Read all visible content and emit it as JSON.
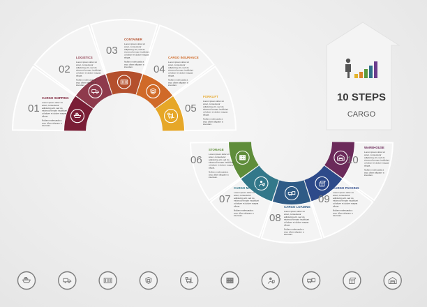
{
  "hero": {
    "title": "10 STEPS",
    "subtitle": "CARGO",
    "chart_icon_colors": [
      "#e4b32a",
      "#d9852a",
      "#5a9a3e",
      "#2f6f8a",
      "#6a3c8c"
    ]
  },
  "steps": [
    {
      "number": "01",
      "title": "CARGO SHIPPING",
      "color": "#7a1e36",
      "icon": "cargo-ship-icon",
      "lines": [
        "Lorem ipsum dolor sit",
        "amet, consectetur",
        "adipiscing elit, sed do",
        "eiusmod tempor incididunt",
        "ut labore et dolore magna",
        "aliqua.",
        "Nullam malesuada a",
        "arcu ullam aliquam a",
        "interdum."
      ]
    },
    {
      "number": "02",
      "title": "LOGISTICS",
      "color": "#8e3a4c",
      "icon": "delivery-truck-icon",
      "lines": [
        "Lorem ipsum dolor sit",
        "amet, consectetur",
        "adipiscing elit, sed do",
        "eiusmod tempor incididunt",
        "ut labore et dolore magna",
        "aliqua.",
        "Nullam malesuada a",
        "arcu ullam aliquam a",
        "interdum."
      ]
    },
    {
      "number": "03",
      "title": "CONTAINER",
      "color": "#b4502d",
      "icon": "container-icon",
      "lines": [
        "Lorem ipsum dolor sit",
        "amet, consectetur",
        "adipiscing elit, sed do",
        "eiusmod tempor incididunt",
        "ut labore et dolore magna",
        "aliqua.",
        "Nullam malesuada a",
        "arcu ullam aliquam a",
        "interdum."
      ]
    },
    {
      "number": "04",
      "title": "CARGO INSURANCE",
      "color": "#d06a28",
      "icon": "shield-box-icon",
      "lines": [
        "Lorem ipsum dolor sit",
        "amet, consectetur",
        "adipiscing elit, sed do",
        "eiusmod tempor incididunt",
        "ut labore et dolore magna",
        "aliqua.",
        "Nullam malesuada a",
        "arcu ullam aliquam a",
        "interdum."
      ]
    },
    {
      "number": "05",
      "title": "FORKLIFT",
      "color": "#e6a728",
      "icon": "forklift-icon",
      "lines": [
        "Lorem ipsum dolor sit",
        "amet, consectetur",
        "adipiscing elit, sed do",
        "eiusmod tempor incididunt",
        "ut labore et dolore magna",
        "aliqua.",
        "Nullam malesuada a",
        "arcu ullam aliquam a",
        "interdum."
      ]
    },
    {
      "number": "06",
      "title": "STORAGE",
      "color": "#5f8d3a",
      "icon": "storage-icon",
      "lines": [
        "Lorem ipsum dolor sit",
        "amet, consectetur",
        "adipiscing elit, sed do",
        "eiusmod tempor incididunt",
        "ut labore et dolore magna",
        "aliqua.",
        "Nullam malesuada a",
        "arcu ullam aliquam a",
        "interdum."
      ]
    },
    {
      "number": "07",
      "title": "CARGO MANAGER",
      "color": "#33788a",
      "icon": "manager-icon",
      "lines": [
        "Lorem ipsum dolor sit",
        "amet, consectetur",
        "adipiscing elit, sed do",
        "eiusmod tempor incididunt",
        "ut labore et dolore magna",
        "aliqua.",
        "Nullam malesuada a",
        "arcu ullam aliquam a",
        "interdum."
      ]
    },
    {
      "number": "08",
      "title": "CARGO LOADING",
      "color": "#2f5b86",
      "icon": "loading-icon",
      "lines": [
        "Lorem ipsum dolor sit",
        "amet, consectetur",
        "adipiscing elit, sed do",
        "eiusmod tempor incididunt",
        "ut labore et dolore magna",
        "aliqua.",
        "Nullam malesuada a",
        "arcu ullam aliquam a",
        "interdum."
      ]
    },
    {
      "number": "09",
      "title": "CARGO PACKING",
      "color": "#2d4a8a",
      "icon": "packing-icon",
      "lines": [
        "Lorem ipsum dolor sit",
        "amet, consectetur",
        "adipiscing elit, sed do",
        "eiusmod tempor incididunt",
        "ut labore et dolore magna",
        "aliqua.",
        "Nullam malesuada a",
        "arcu ullam aliquam a",
        "interdum."
      ]
    },
    {
      "number": "10",
      "title": "WAREHOUSE",
      "color": "#6b2a5a",
      "icon": "warehouse-icon",
      "lines": [
        "Lorem ipsum dolor sit",
        "amet, consectetur",
        "adipiscing elit, sed do",
        "eiusmod tempor incididunt",
        "ut labore et dolore magna",
        "aliqua.",
        "Nullam malesuada a",
        "arcu ullam aliquam a",
        "interdum."
      ]
    }
  ],
  "bottom_icons": [
    "cargo-ship-icon",
    "delivery-truck-icon",
    "container-icon",
    "shield-box-icon",
    "forklift-icon",
    "storage-icon",
    "manager-icon",
    "loading-icon",
    "packing-icon",
    "warehouse-icon"
  ],
  "colors": {
    "panel": "#f4f4f4",
    "panel_edge": "#ffffff",
    "number_grey": "#7a7a7a",
    "text_dark": "#3a3a3a",
    "icon_grey": "#7d7d7d"
  }
}
